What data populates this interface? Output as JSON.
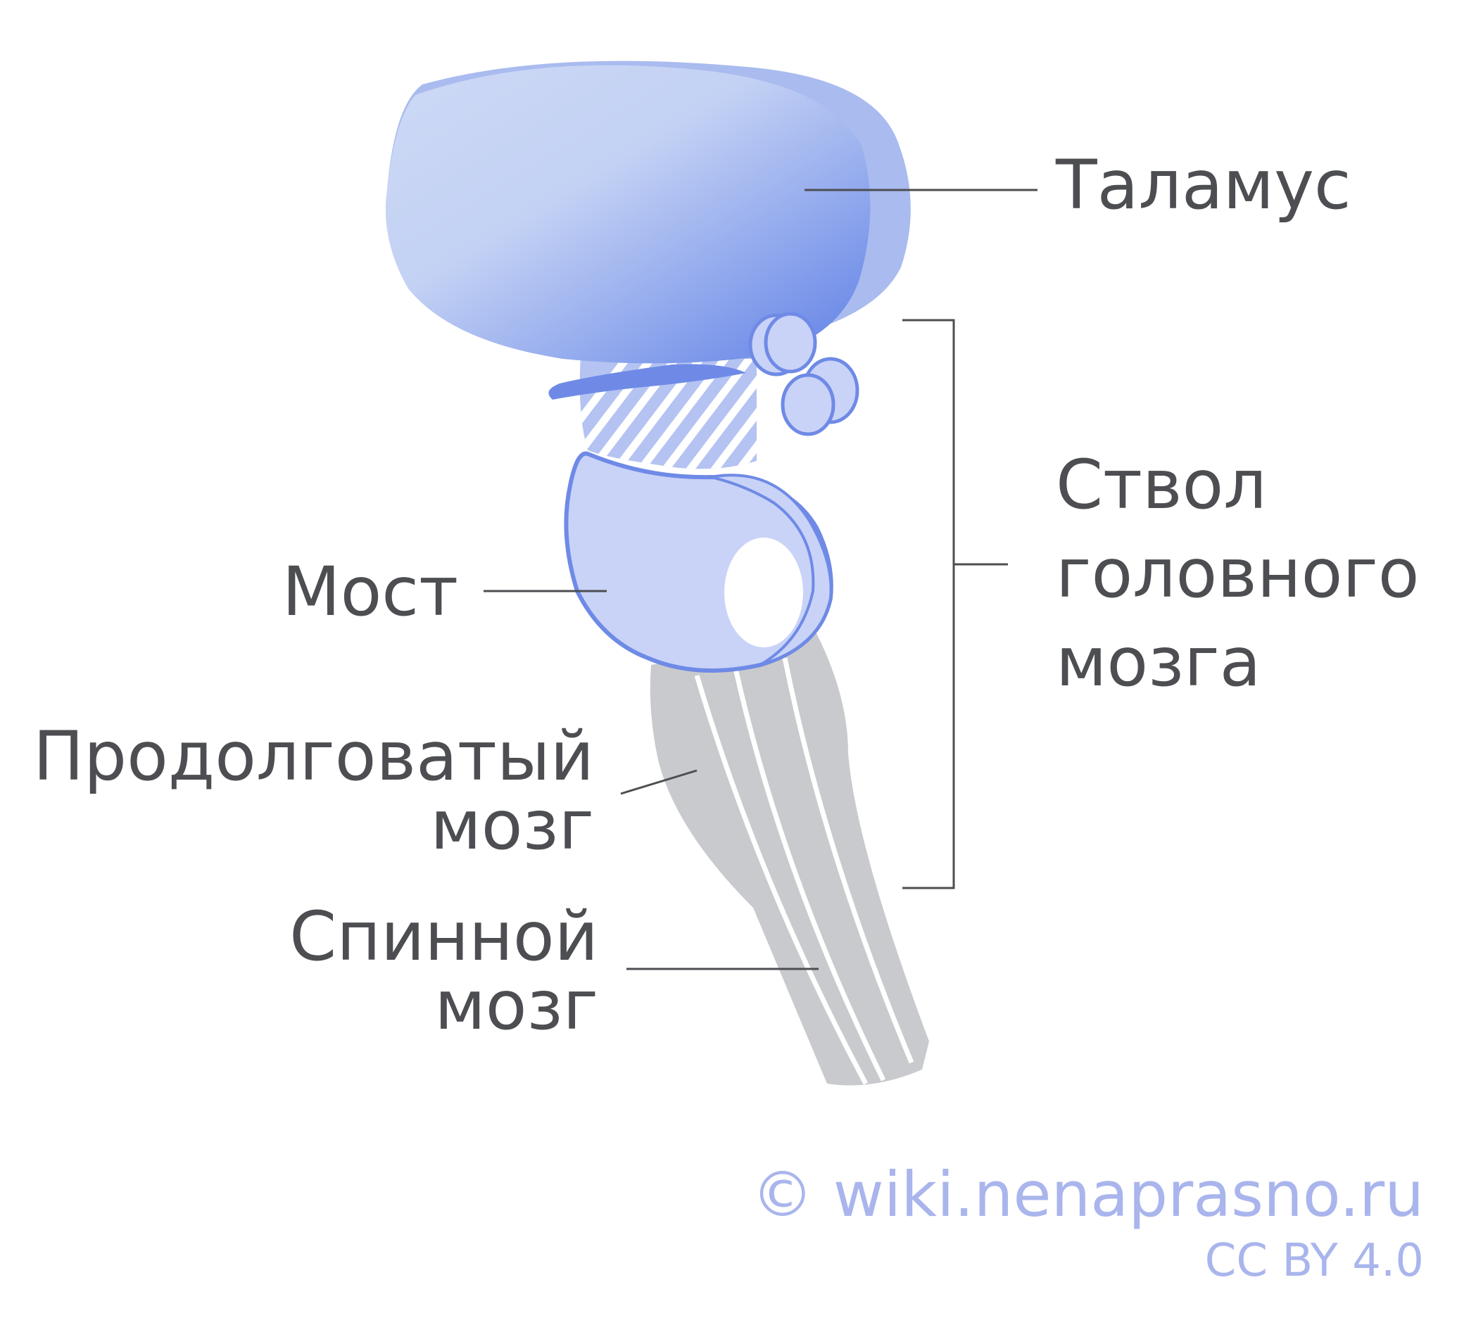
{
  "labels": {
    "thalamus": "Таламус",
    "brainstem": [
      "Ствол",
      "головного",
      "мозга"
    ],
    "pons": "Мост",
    "medulla": [
      "Продолговатый",
      "мозг"
    ],
    "spinal_cord": [
      "Спинной",
      "мозг"
    ]
  },
  "credit": {
    "site": "© wiki.nenaprasno.ru",
    "license": "CC BY 4.0"
  },
  "colors": {
    "thalamus_light": "#cdd9f5",
    "thalamus_dark": "#5f80e6",
    "outline": "#6f8ae6",
    "pons_fill": "#c9d3f7",
    "cord_fill": "#c9cacd",
    "text": "#4d4e52",
    "leader_line": "#4d4e52",
    "credit": "#a9b5ec"
  }
}
